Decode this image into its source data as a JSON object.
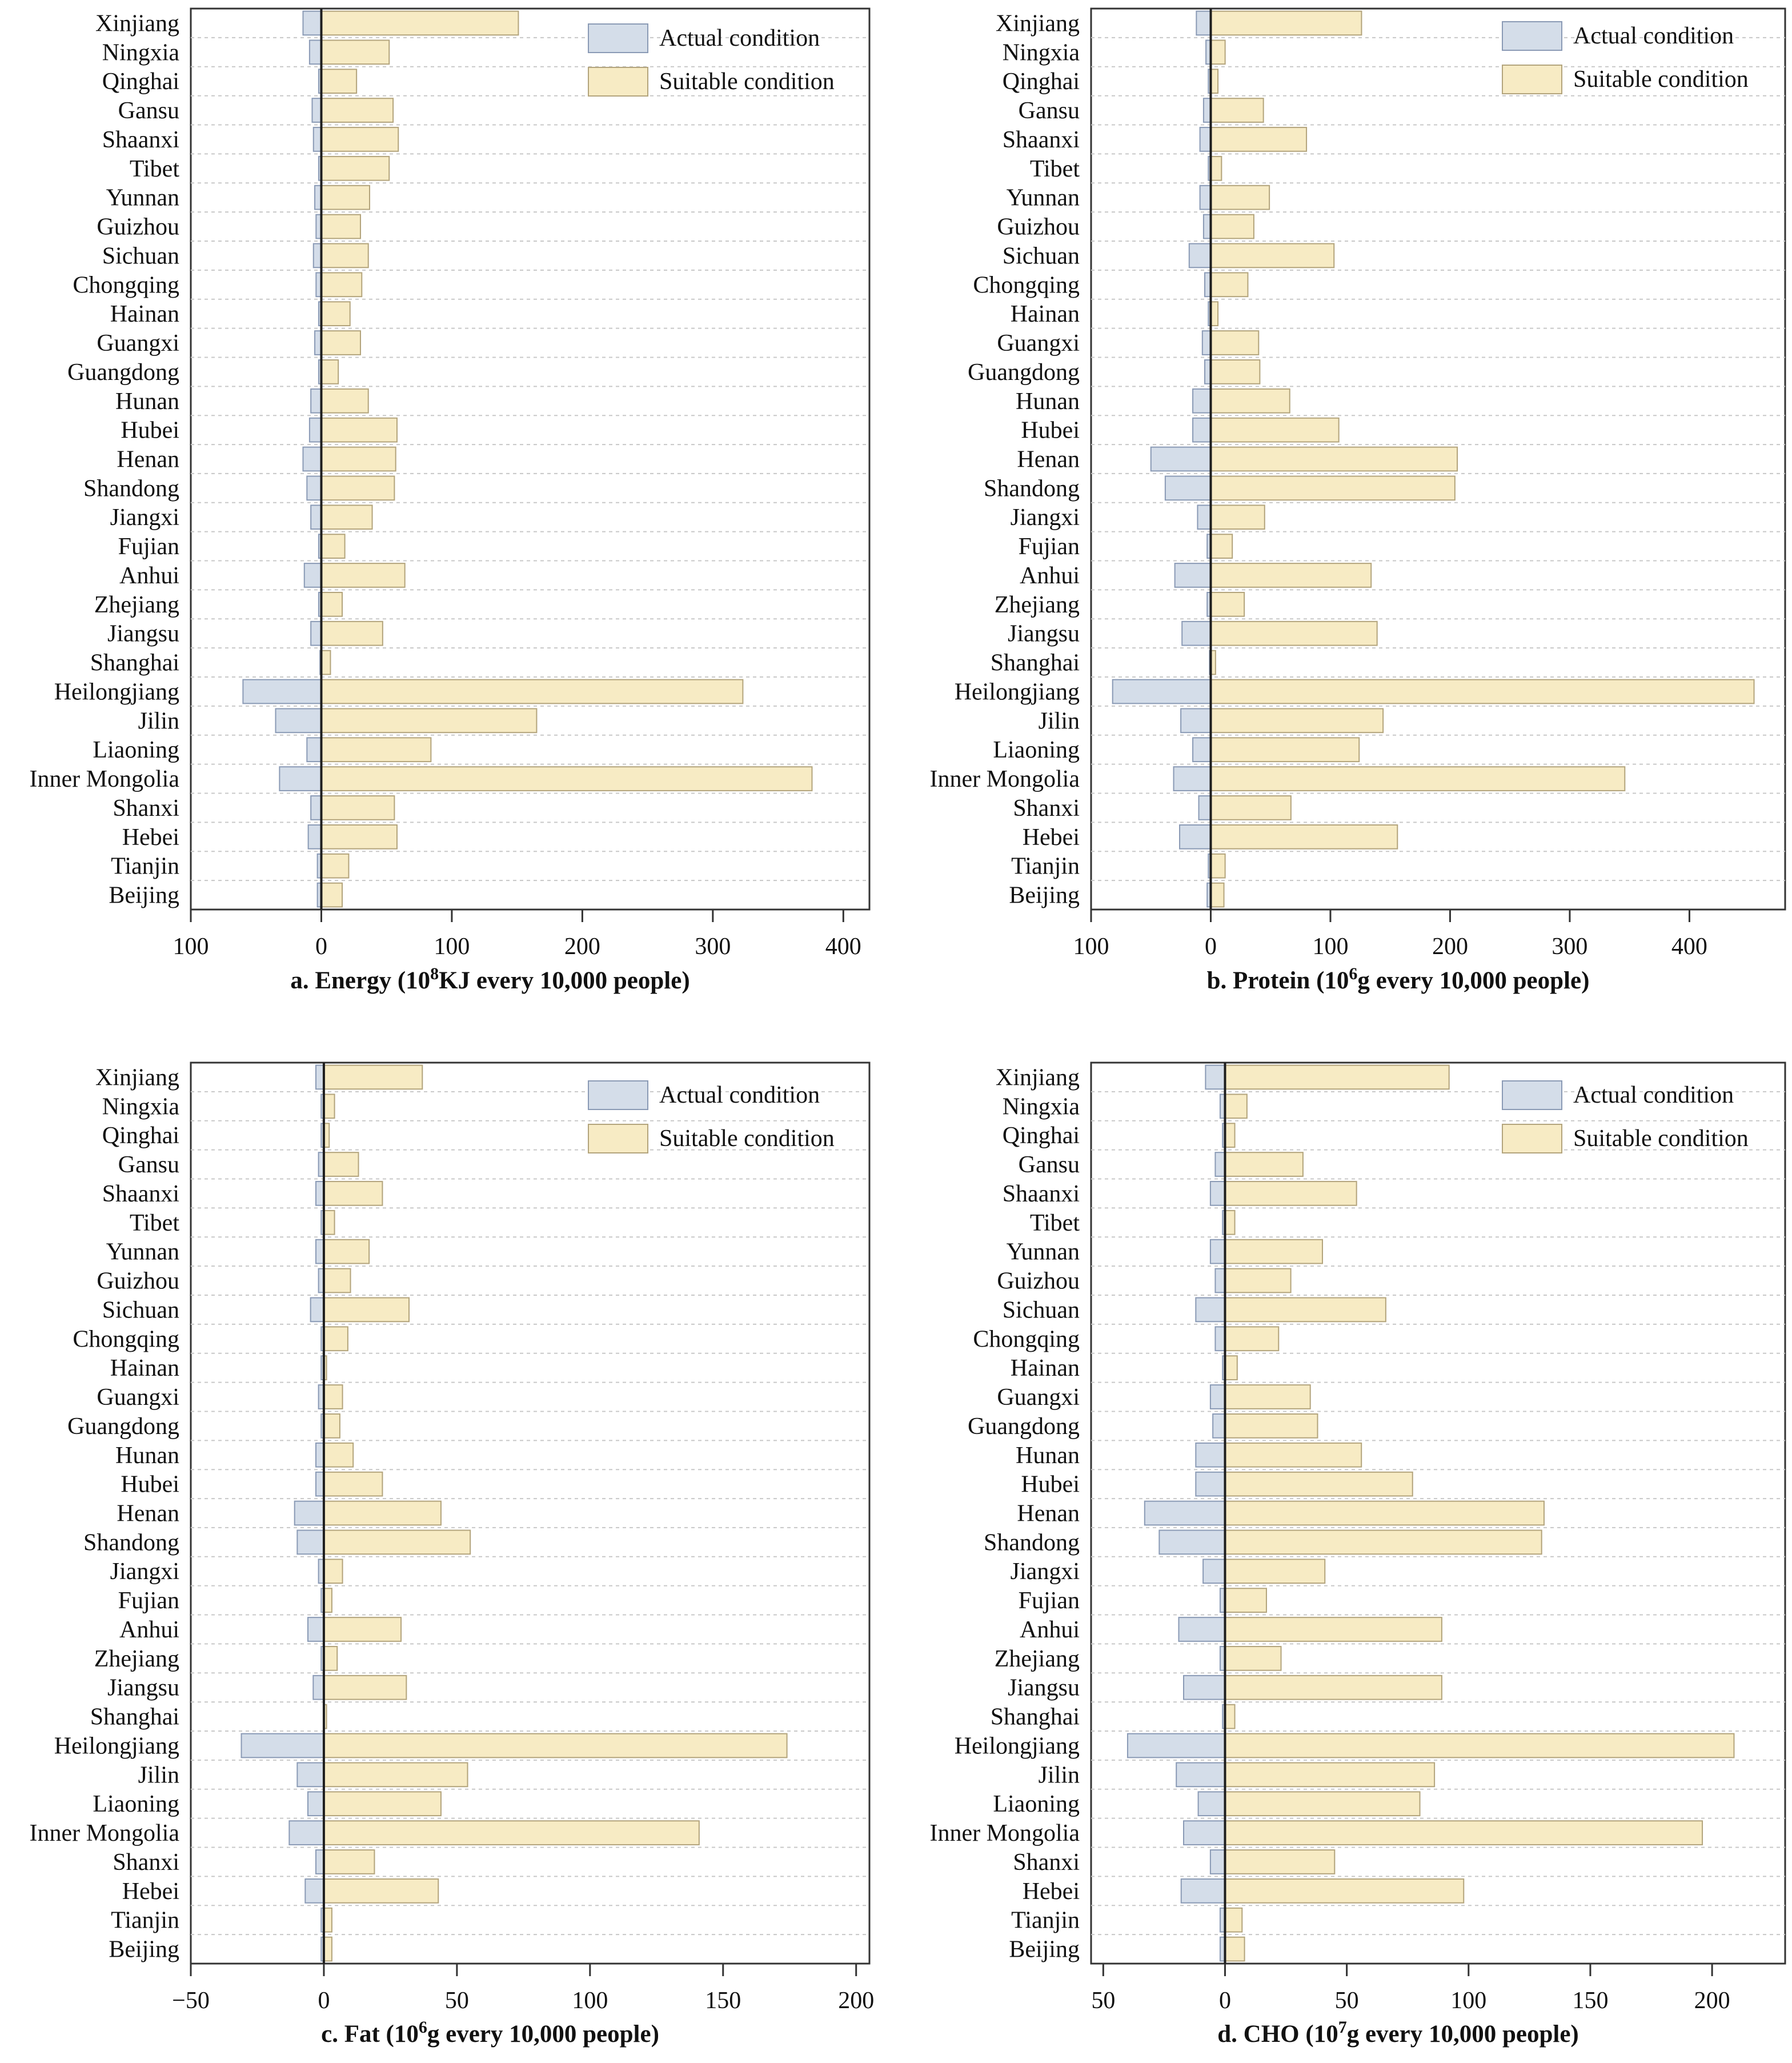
{
  "colors": {
    "actual_fill": "#d4dde9",
    "actual_stroke": "#8a9ab5",
    "suitable_fill": "#f7ebc4",
    "suitable_stroke": "#b3a47c",
    "axis": "#333333",
    "grid": "#c8c8c8",
    "zero_line": "#1e1e1e"
  },
  "chart_data": [
    {
      "id": "a",
      "type": "bar",
      "orientation": "horizontal",
      "caption_main": "a. Energy (10",
      "caption_sup": "8",
      "caption_rest": "KJ every 10,000 people)",
      "categories": [
        "Xinjiang",
        "Ningxia",
        "Qinghai",
        "Gansu",
        "Shaanxi",
        "Tibet",
        "Yunnan",
        "Guizhou",
        "Sichuan",
        "Chongqing",
        "Hainan",
        "Guangxi",
        "Guangdong",
        "Hunan",
        "Hubei",
        "Henan",
        "Shandong",
        "Jiangxi",
        "Fujian",
        "Anhui",
        "Zhejiang",
        "Jiangsu",
        "Shanghai",
        "Heilongjiang",
        "Jilin",
        "Liaoning",
        "Inner Mongolia",
        "Shanxi",
        "Hebei",
        "Tianjin",
        "Beijing"
      ],
      "xlim": [
        -100,
        420
      ],
      "ticks": [
        -100,
        0,
        100,
        200,
        300,
        400
      ],
      "tick_labels": [
        "100",
        "0",
        "100",
        "200",
        "300",
        "400"
      ],
      "series": [
        {
          "name": "Actual condition",
          "values": [
            -14,
            -9,
            -2,
            -7,
            -6,
            -2,
            -5,
            -4,
            -6,
            -4,
            -2,
            -5,
            -2,
            -8,
            -9,
            -14,
            -11,
            -8,
            -2,
            -13,
            -2,
            -8,
            -1,
            -60,
            -35,
            -11,
            -32,
            -8,
            -10,
            -3,
            -3
          ]
        },
        {
          "name": "Suitable condition",
          "values": [
            151,
            52,
            27,
            55,
            59,
            52,
            37,
            30,
            36,
            31,
            22,
            30,
            13,
            36,
            58,
            57,
            56,
            39,
            18,
            64,
            16,
            47,
            7,
            323,
            165,
            84,
            376,
            56,
            58,
            21,
            16
          ]
        }
      ],
      "legend": [
        "Actual condition",
        "Suitable condition"
      ],
      "legend_position": "top-right"
    },
    {
      "id": "b",
      "type": "bar",
      "orientation": "horizontal",
      "caption_main": "b. Protein (10",
      "caption_sup": "6",
      "caption_rest": "g every 10,000 people)",
      "categories": [
        "Xinjiang",
        "Ningxia",
        "Qinghai",
        "Gansu",
        "Shaanxi",
        "Tibet",
        "Yunnan",
        "Guizhou",
        "Sichuan",
        "Chongqing",
        "Hainan",
        "Guangxi",
        "Guangdong",
        "Hunan",
        "Hubei",
        "Henan",
        "Shandong",
        "Jiangxi",
        "Fujian",
        "Anhui",
        "Zhejiang",
        "Jiangsu",
        "Shanghai",
        "Heilongjiang",
        "Jilin",
        "Liaoning",
        "Inner Mongolia",
        "Shanxi",
        "Hebei",
        "Tianjin",
        "Beijing"
      ],
      "xlim": [
        -100,
        480
      ],
      "ticks": [
        -100,
        0,
        100,
        200,
        300,
        400
      ],
      "tick_labels": [
        "100",
        "0",
        "100",
        "200",
        "300",
        "400"
      ],
      "series": [
        {
          "name": "Actual condition",
          "values": [
            -12,
            -4,
            -2,
            -6,
            -9,
            -2,
            -9,
            -6,
            -18,
            -5,
            -2,
            -7,
            -5,
            -15,
            -15,
            -50,
            -38,
            -11,
            -3,
            -30,
            -3,
            -24,
            -1,
            -82,
            -25,
            -15,
            -31,
            -10,
            -26,
            -2,
            -3
          ]
        },
        {
          "name": "Suitable condition",
          "values": [
            126,
            12,
            6,
            44,
            80,
            9,
            49,
            36,
            103,
            31,
            6,
            40,
            41,
            66,
            107,
            206,
            204,
            45,
            18,
            134,
            28,
            139,
            4,
            454,
            144,
            124,
            346,
            67,
            156,
            12,
            11
          ]
        }
      ],
      "legend": [
        "Actual condition",
        "Suitable condition"
      ],
      "legend_position": "top-right"
    },
    {
      "id": "c",
      "type": "bar",
      "orientation": "horizontal",
      "caption_main": "c. Fat (10",
      "caption_sup": "6",
      "caption_rest": "g every 10,000 people)",
      "categories": [
        "Xinjiang",
        "Ningxia",
        "Qinghai",
        "Gansu",
        "Shaanxi",
        "Tibet",
        "Yunnan",
        "Guizhou",
        "Sichuan",
        "Chongqing",
        "Hainan",
        "Guangxi",
        "Guangdong",
        "Hunan",
        "Hubei",
        "Henan",
        "Shandong",
        "Jiangxi",
        "Fujian",
        "Anhui",
        "Zhejiang",
        "Jiangsu",
        "Shanghai",
        "Heilongjiang",
        "Jilin",
        "Liaoning",
        "Inner Mongolia",
        "Shanxi",
        "Hebei",
        "Tianjin",
        "Beijing"
      ],
      "xlim": [
        -50,
        205
      ],
      "ticks": [
        -50,
        0,
        50,
        100,
        150,
        200
      ],
      "tick_labels": [
        "−50",
        "0",
        "50",
        "100",
        "150",
        "200"
      ],
      "series": [
        {
          "name": "Actual condition",
          "values": [
            -3,
            -1,
            -1,
            -2,
            -3,
            -1,
            -3,
            -2,
            -5,
            -1,
            -1,
            -2,
            -1,
            -3,
            -3,
            -11,
            -10,
            -2,
            -1,
            -6,
            -1,
            -4,
            0,
            -31,
            -10,
            -6,
            -13,
            -3,
            -7,
            -1,
            -1
          ]
        },
        {
          "name": "Suitable condition",
          "values": [
            37,
            4,
            2,
            13,
            22,
            4,
            17,
            10,
            32,
            9,
            1,
            7,
            6,
            11,
            22,
            44,
            55,
            7,
            3,
            29,
            5,
            31,
            1,
            174,
            54,
            44,
            141,
            19,
            43,
            3,
            3
          ]
        }
      ],
      "legend": [
        "Actual condition",
        "Suitable condition"
      ],
      "legend_position": "top-right"
    },
    {
      "id": "d",
      "type": "bar",
      "orientation": "horizontal",
      "caption_main": "d. CHO (10",
      "caption_sup": "7",
      "caption_rest": "g every 10,000 people)",
      "categories": [
        "Xinjiang",
        "Ningxia",
        "Qinghai",
        "Gansu",
        "Shaanxi",
        "Tibet",
        "Yunnan",
        "Guizhou",
        "Sichuan",
        "Chongqing",
        "Hainan",
        "Guangxi",
        "Guangdong",
        "Hunan",
        "Hubei",
        "Henan",
        "Shandong",
        "Jiangxi",
        "Fujian",
        "Anhui",
        "Zhejiang",
        "Jiangsu",
        "Shanghai",
        "Heilongjiang",
        "Jilin",
        "Liaoning",
        "Inner Mongolia",
        "Shanxi",
        "Hebei",
        "Tianjin",
        "Beijing"
      ],
      "xlim": [
        -55,
        230
      ],
      "ticks": [
        -50,
        0,
        50,
        100,
        150,
        200
      ],
      "tick_labels": [
        "50",
        "0",
        "50",
        "100",
        "150",
        "200"
      ],
      "series": [
        {
          "name": "Actual condition",
          "values": [
            -8,
            -2,
            -1,
            -4,
            -6,
            -1,
            -6,
            -4,
            -12,
            -4,
            -1,
            -6,
            -5,
            -12,
            -12,
            -33,
            -27,
            -9,
            -2,
            -19,
            -2,
            -17,
            -1,
            -40,
            -20,
            -11,
            -17,
            -6,
            -18,
            -2,
            -2
          ]
        },
        {
          "name": "Suitable condition",
          "values": [
            92,
            9,
            4,
            32,
            54,
            4,
            40,
            27,
            66,
            22,
            5,
            35,
            38,
            56,
            77,
            131,
            130,
            41,
            17,
            89,
            23,
            89,
            4,
            209,
            86,
            80,
            196,
            45,
            98,
            7,
            8
          ]
        }
      ],
      "legend": [
        "Actual condition",
        "Suitable condition"
      ],
      "legend_position": "top-right"
    }
  ]
}
